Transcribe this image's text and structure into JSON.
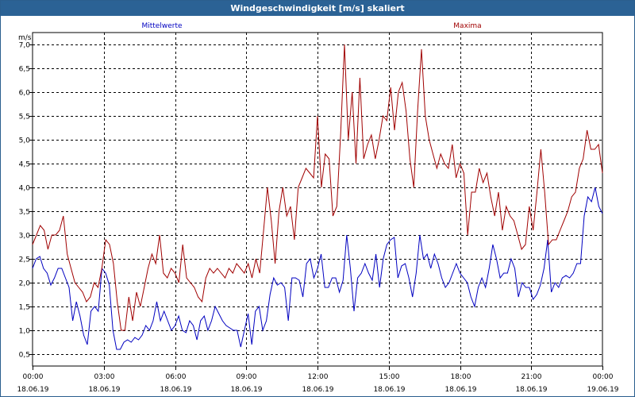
{
  "window": {
    "title": "Windgeschwindigkeit [m/s] skaliert"
  },
  "chart_data": {
    "type": "line",
    "title": "Windgeschwindigkeit [m/s] skaliert",
    "ylabel": "m/s",
    "xlabel": "",
    "ylim": [
      0.25,
      7.25
    ],
    "xlim": [
      0,
      24
    ],
    "yticks": [
      "0,5",
      "1,0",
      "1,5",
      "2,0",
      "2,5",
      "3,0",
      "3,5",
      "4,0",
      "4,5",
      "5,0",
      "5,5",
      "6,0",
      "6,5",
      "7,0"
    ],
    "xticks": [
      {
        "time": "00:00",
        "date": "18.06.19"
      },
      {
        "time": "03:00",
        "date": "18.06.19"
      },
      {
        "time": "06:00",
        "date": "18.06.19"
      },
      {
        "time": "09:00",
        "date": "18.06.19"
      },
      {
        "time": "12:00",
        "date": "18.06.19"
      },
      {
        "time": "15:00",
        "date": "18.06.19"
      },
      {
        "time": "18:00",
        "date": "18.06.19"
      },
      {
        "time": "21:00",
        "date": "18.06.19"
      },
      {
        "time": "00:00",
        "date": "19.06.19"
      }
    ],
    "grid": true,
    "legend": "top",
    "series": [
      {
        "name": "Mittelwerte",
        "color": "#0000c0",
        "values": [
          2.3,
          2.5,
          2.55,
          2.3,
          2.2,
          1.95,
          2.1,
          2.3,
          2.3,
          2.1,
          1.9,
          1.2,
          1.6,
          1.3,
          0.9,
          0.7,
          1.4,
          1.5,
          1.4,
          2.3,
          2.2,
          1.95,
          1.0,
          0.6,
          0.6,
          0.75,
          0.8,
          0.75,
          0.85,
          0.8,
          0.9,
          1.1,
          1.0,
          1.2,
          1.6,
          1.2,
          1.4,
          1.2,
          1.0,
          1.1,
          1.3,
          1.0,
          0.95,
          1.2,
          1.1,
          0.8,
          1.2,
          1.3,
          1.0,
          1.2,
          1.5,
          1.35,
          1.2,
          1.1,
          1.05,
          1.0,
          1.0,
          0.65,
          1.0,
          1.35,
          0.7,
          1.4,
          1.5,
          1.0,
          1.2,
          1.75,
          2.1,
          1.95,
          2.0,
          1.9,
          1.2,
          2.1,
          2.1,
          2.05,
          1.7,
          2.4,
          2.5,
          2.1,
          2.3,
          2.6,
          1.9,
          1.9,
          2.1,
          2.1,
          1.8,
          2.05,
          3.0,
          2.3,
          1.4,
          2.1,
          2.2,
          2.4,
          2.2,
          2.05,
          2.6,
          1.9,
          2.5,
          2.8,
          2.9,
          2.95,
          2.1,
          2.35,
          2.4,
          2.1,
          1.7,
          2.2,
          3.0,
          2.5,
          2.6,
          2.3,
          2.6,
          2.4,
          2.1,
          1.9,
          2.0,
          2.2,
          2.4,
          2.2,
          2.1,
          2.0,
          1.7,
          1.5,
          1.9,
          2.1,
          1.9,
          2.3,
          2.8,
          2.5,
          2.1,
          2.2,
          2.2,
          2.5,
          2.3,
          1.7,
          2.0,
          1.9,
          1.9,
          1.65,
          1.75,
          1.95,
          2.3,
          2.9,
          1.8,
          2.0,
          1.9,
          2.1,
          2.15,
          2.1,
          2.2,
          2.4,
          2.4,
          3.4,
          3.8,
          3.7,
          4.0,
          3.6,
          3.45
        ]
      },
      {
        "name": "Maxima",
        "color": "#a00000",
        "values": [
          2.8,
          3.0,
          3.2,
          3.1,
          2.7,
          3.0,
          3.0,
          3.1,
          3.4,
          2.6,
          2.3,
          2.0,
          1.9,
          1.8,
          1.6,
          1.7,
          2.0,
          1.9,
          2.3,
          2.9,
          2.8,
          2.4,
          1.6,
          1.0,
          1.0,
          1.7,
          1.2,
          1.8,
          1.5,
          1.9,
          2.3,
          2.6,
          2.4,
          3.0,
          2.2,
          2.1,
          2.3,
          2.2,
          2.0,
          2.8,
          2.1,
          2.0,
          1.9,
          1.7,
          1.6,
          2.1,
          2.3,
          2.2,
          2.3,
          2.2,
          2.1,
          2.3,
          2.2,
          2.4,
          2.3,
          2.2,
          2.4,
          2.1,
          2.5,
          2.2,
          3.1,
          4.0,
          3.3,
          2.4,
          3.5,
          4.0,
          3.4,
          3.6,
          2.9,
          4.0,
          4.2,
          4.4,
          4.3,
          4.2,
          5.5,
          4.0,
          4.7,
          4.6,
          3.4,
          3.6,
          5.1,
          7.0,
          5.0,
          6.0,
          4.5,
          6.3,
          4.6,
          4.9,
          5.1,
          4.6,
          5.0,
          5.5,
          5.4,
          6.1,
          5.2,
          6.0,
          6.2,
          5.6,
          4.6,
          4.0,
          5.6,
          6.9,
          5.5,
          5.0,
          4.7,
          4.4,
          4.7,
          4.5,
          4.4,
          4.9,
          4.2,
          4.5,
          4.3,
          3.0,
          3.9,
          3.9,
          4.4,
          4.1,
          4.3,
          3.8,
          3.4,
          3.9,
          3.1,
          3.6,
          3.4,
          3.3,
          3.0,
          2.7,
          2.8,
          3.6,
          3.1,
          3.9,
          4.8,
          3.9,
          2.8,
          2.9,
          2.9,
          3.1,
          3.3,
          3.5,
          3.8,
          3.9,
          4.4,
          4.6,
          5.2,
          4.8,
          4.8,
          4.9,
          4.3
        ]
      }
    ]
  }
}
